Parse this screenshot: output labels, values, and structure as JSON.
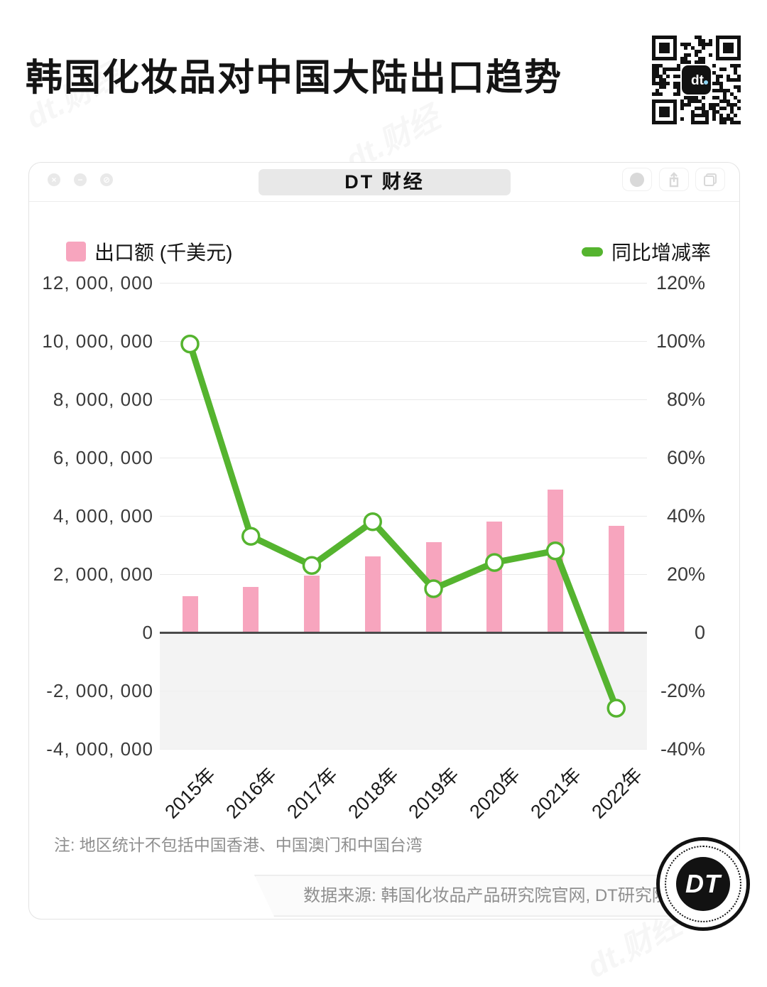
{
  "header": {
    "title": "韩国化妆品对中国大陆出口趋势",
    "qr": {
      "center_label": "dt."
    }
  },
  "watermark": {
    "text": "dt.财经"
  },
  "window": {
    "title": "DT 财经",
    "controls_left": {
      "close": "×",
      "minimize": "−",
      "block": "⊘"
    },
    "controls_right": [
      "record-circle",
      "share",
      "tabs"
    ]
  },
  "legend": {
    "bar_label": "出口额 (千美元)",
    "line_label": "同比增减率"
  },
  "chart_data": {
    "type": "bar+line combo",
    "title": "韩国化妆品对中国大陆出口趋势",
    "categories": [
      "2015年",
      "2016年",
      "2017年",
      "2018年",
      "2019年",
      "2020年",
      "2021年",
      "2022年"
    ],
    "series": [
      {
        "name": "出口额 (千美元)",
        "type": "bar",
        "axis": "left",
        "color": "#F7A5BE",
        "values": [
          1250000,
          1550000,
          1950000,
          2600000,
          3100000,
          3800000,
          4900000,
          3650000
        ]
      },
      {
        "name": "同比增减率",
        "type": "line",
        "axis": "right",
        "unit": "%",
        "color": "#55B42F",
        "values": [
          99,
          33,
          23,
          38,
          15,
          24,
          28,
          -26
        ]
      }
    ],
    "left_axis": {
      "label": "出口额 (千美元)",
      "range": [
        -4000000,
        12000000
      ],
      "tick_values": [
        12000000,
        10000000,
        8000000,
        6000000,
        4000000,
        2000000,
        0,
        -2000000,
        -4000000
      ],
      "tick_labels": [
        "12, 000, 000",
        "10, 000, 000",
        "8, 000, 000",
        "6, 000, 000",
        "4, 000, 000",
        "2, 000, 000",
        "0",
        "-2, 000, 000",
        "-4, 000, 000"
      ]
    },
    "right_axis": {
      "label": "同比增减率",
      "range": [
        -40,
        120
      ],
      "tick_labels": [
        "120%",
        "100%",
        "80%",
        "60%",
        "40%",
        "20%",
        "0",
        "-20%",
        "-40%"
      ]
    },
    "grid": true,
    "legend_position": "top",
    "negative_region_shaded": true
  },
  "note": "注: 地区统计不包括中国香港、中国澳门和中国台湾",
  "source": "数据来源: 韩国化妆品产品研究院官网, DT研究院整理",
  "footer_logo": {
    "text": "DT"
  }
}
